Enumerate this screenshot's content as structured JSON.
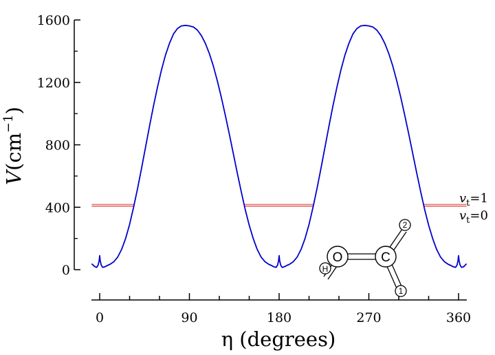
{
  "chart_data": {
    "type": "line",
    "title": "",
    "xlabel": "η (degrees)",
    "ylabel_main": "V",
    "ylabel_unit": "(cm",
    "ylabel_exp": "−1",
    "ylabel_close": ")",
    "xlim": [
      -8,
      368
    ],
    "ylim": [
      0,
      1600
    ],
    "x_ticks": [
      0,
      90,
      180,
      270,
      360
    ],
    "x_tick_labels": [
      "0",
      "90",
      "180",
      "270",
      "360"
    ],
    "y_ticks": [
      0,
      400,
      800,
      1200,
      1600
    ],
    "y_tick_labels": [
      "0",
      "400",
      "800",
      "1200",
      "1600"
    ],
    "grid": false,
    "series": [
      {
        "color": "#0000cc",
        "x": [
          -8,
          -5,
          -3,
          -1.5,
          -0.5,
          0,
          0.5,
          1.5,
          3,
          5,
          8,
          10,
          14,
          18,
          22,
          26,
          30,
          34,
          38,
          42,
          46,
          50,
          54,
          58,
          62,
          66,
          70,
          74,
          78,
          82,
          86,
          90,
          94,
          98,
          102,
          106,
          110,
          114,
          118,
          122,
          126,
          130,
          134,
          138,
          142,
          146,
          150,
          154,
          158,
          162,
          166,
          170,
          172,
          175,
          177,
          178.5,
          179.5,
          180,
          180.5,
          181.5,
          183,
          185,
          188,
          190,
          194,
          198,
          202,
          206,
          210,
          214,
          218,
          222,
          226,
          230,
          234,
          238,
          242,
          246,
          250,
          254,
          258,
          262,
          266,
          270,
          274,
          278,
          282,
          286,
          290,
          294,
          298,
          302,
          306,
          310,
          314,
          318,
          322,
          326,
          330,
          334,
          338,
          342,
          346,
          350,
          352,
          355,
          357,
          358.5,
          359.5,
          360,
          360.5,
          361.5,
          363,
          365,
          368
        ],
        "y": [
          38,
          20,
          15,
          30,
          60,
          90,
          60,
          30,
          15,
          18,
          28,
          33,
          50,
          80,
          130,
          200,
          290,
          400,
          520,
          650,
          785,
          920,
          1050,
          1170,
          1280,
          1375,
          1450,
          1510,
          1545,
          1562,
          1565,
          1562,
          1555,
          1535,
          1500,
          1450,
          1385,
          1305,
          1210,
          1105,
          990,
          870,
          745,
          620,
          500,
          385,
          285,
          200,
          130,
          80,
          50,
          33,
          28,
          18,
          15,
          30,
          60,
          90,
          60,
          30,
          15,
          18,
          28,
          33,
          50,
          80,
          130,
          200,
          290,
          400,
          520,
          650,
          785,
          920,
          1050,
          1170,
          1280,
          1375,
          1450,
          1510,
          1545,
          1562,
          1565,
          1562,
          1555,
          1535,
          1500,
          1450,
          1385,
          1305,
          1210,
          1105,
          990,
          870,
          745,
          620,
          500,
          385,
          285,
          200,
          130,
          80,
          50,
          33,
          28,
          18,
          15,
          30,
          60,
          90,
          60,
          30,
          15,
          18,
          38
        ]
      }
    ],
    "levels": [
      {
        "label_main": "v",
        "label_sub": "t",
        "label_rest": "=1",
        "energy": 418,
        "color": "#e04040"
      },
      {
        "label_main": "v",
        "label_sub": "t",
        "label_rest": "=0",
        "energy": 407,
        "color": "#e04040"
      }
    ],
    "molecule": {
      "atoms": [
        {
          "id": "O",
          "label": "O"
        },
        {
          "id": "C",
          "label": "C"
        },
        {
          "id": "H",
          "label": "H"
        },
        {
          "id": "2",
          "label": "2"
        },
        {
          "id": "1",
          "label": "1"
        }
      ]
    }
  }
}
